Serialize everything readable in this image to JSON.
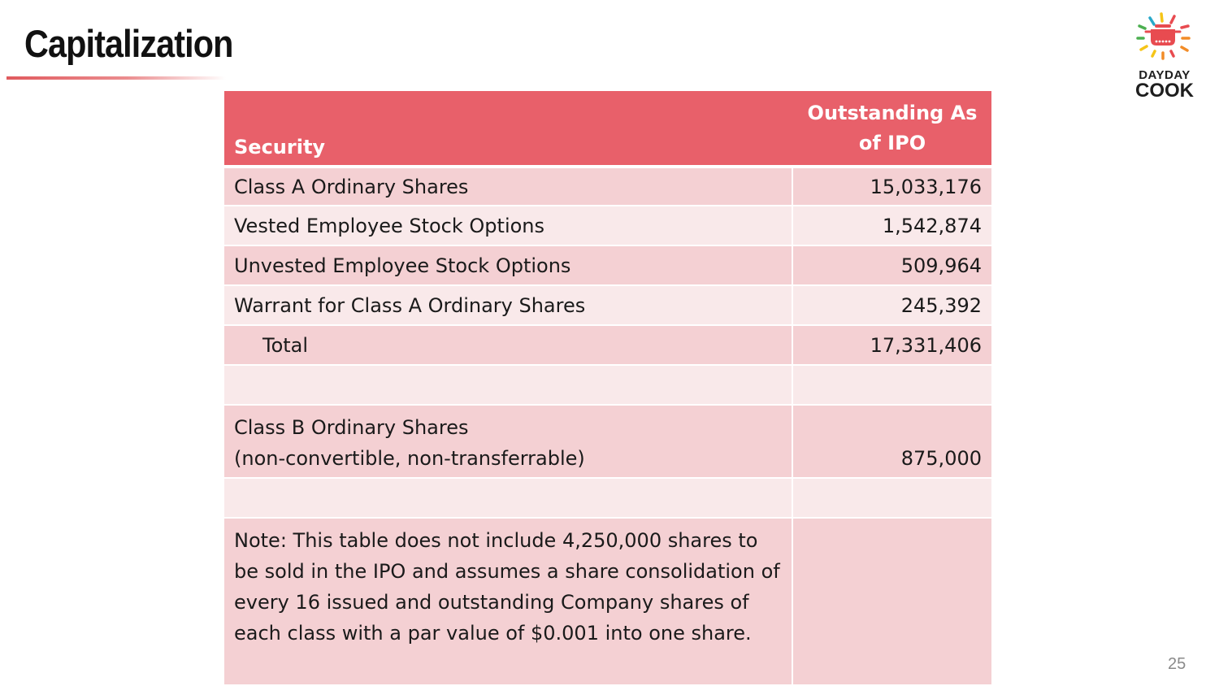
{
  "slide": {
    "title": "Capitalization",
    "page_number": "25"
  },
  "logo": {
    "line1": "DAYDAY",
    "line2": "COOK",
    "colors": {
      "pot": "#e84b50",
      "ray_green": "#4caf50",
      "ray_yellow": "#f5c518",
      "ray_orange": "#f28c28",
      "ray_red": "#e84b50",
      "ray_blue": "#29a8c9"
    }
  },
  "table": {
    "header": {
      "security": "Security",
      "outstanding": "Outstanding As of IPO"
    },
    "rows": [
      {
        "security": "Class A Ordinary Shares",
        "outstanding": "15,033,176"
      },
      {
        "security": "Vested Employee Stock Options",
        "outstanding": "1,542,874"
      },
      {
        "security": "Unvested Employee Stock Options",
        "outstanding": "509,964"
      },
      {
        "security": "Warrant for Class A Ordinary Shares",
        "outstanding": "245,392"
      },
      {
        "security": "Total",
        "outstanding": "17,331,406"
      },
      {
        "security": "",
        "outstanding": ""
      },
      {
        "security_line1": "Class B Ordinary Shares",
        "security_line2": "(non-convertible, non-transferrable)",
        "outstanding": "875,000"
      },
      {
        "security": "",
        "outstanding": ""
      },
      {
        "security": "Note: This table does not include 4,250,000 shares to be sold in the IPO and assumes a share consolidation of every 16 issued and outstanding Company shares of each class with a par value of $0.001 into one share.",
        "outstanding": ""
      }
    ]
  },
  "colors": {
    "header_bg": "#e8606a",
    "row_dark": "#f4d0d3",
    "row_light": "#f9e9ea",
    "title_rule": "#e05a5e"
  }
}
